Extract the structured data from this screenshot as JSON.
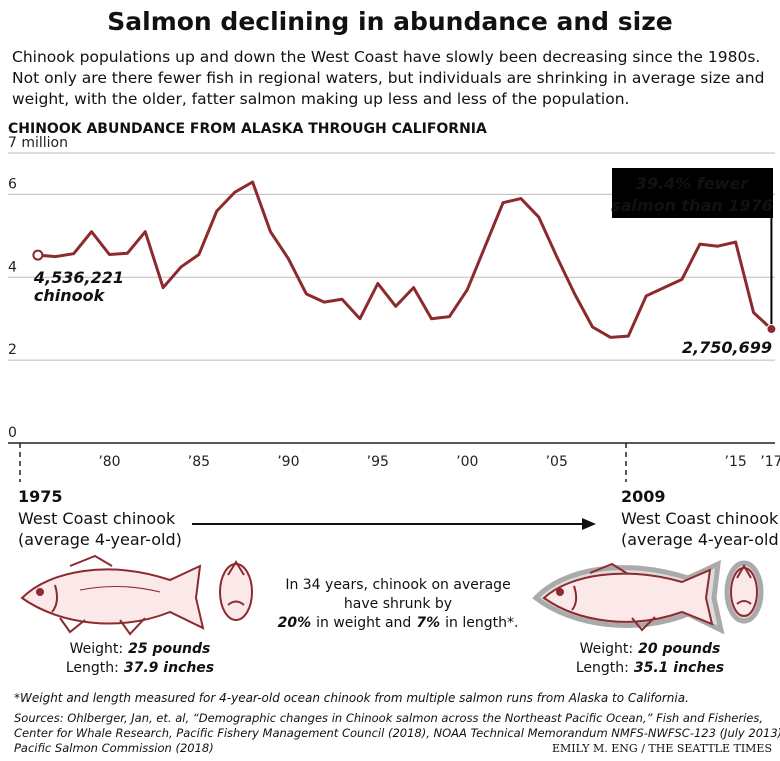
{
  "chart_data": {
    "type": "line",
    "title": "Salmon declining in abundance and size",
    "subtitle": [
      "Chinook populations up and down the West Coast have slowly been decreasing since the 1980s.",
      "Not only are there fewer fish in regional waters, but individuals are shrinking in average size and",
      "weight, with the older, fatter salmon making up less and less of the population."
    ],
    "heading": "CHINOOK ABUNDANCE FROM ALASKA THROUGH CALIFORNIA",
    "x": [
      1976,
      1977,
      1978,
      1979,
      1980,
      1981,
      1982,
      1983,
      1984,
      1985,
      1986,
      1987,
      1988,
      1989,
      1990,
      1991,
      1992,
      1993,
      1994,
      1995,
      1996,
      1997,
      1998,
      1999,
      2000,
      2001,
      2002,
      2003,
      2004,
      2005,
      2006,
      2007,
      2008,
      2009,
      2010,
      2011,
      2012,
      2013,
      2014,
      2015,
      2016,
      2017
    ],
    "values": [
      4.536221,
      4.5,
      4.57,
      5.1,
      4.55,
      4.58,
      5.1,
      3.75,
      4.25,
      4.55,
      5.6,
      6.05,
      6.3,
      5.1,
      4.45,
      3.6,
      3.4,
      3.47,
      3.0,
      3.85,
      3.3,
      3.75,
      3.0,
      3.05,
      3.7,
      4.75,
      5.8,
      5.9,
      5.45,
      4.5,
      3.6,
      2.8,
      2.55,
      2.58,
      3.55,
      3.75,
      3.95,
      4.8,
      4.75,
      4.85,
      3.15,
      2.750699
    ],
    "value_labels": [
      "4,536,221",
      null,
      null,
      null,
      null,
      null,
      null,
      null,
      null,
      null,
      null,
      null,
      null,
      null,
      null,
      null,
      null,
      null,
      null,
      null,
      null,
      null,
      null,
      null,
      null,
      null,
      null,
      null,
      null,
      null,
      null,
      null,
      null,
      null,
      null,
      null,
      null,
      null,
      null,
      null,
      null,
      "2,750,699"
    ],
    "color": "#8c2a2e",
    "xlim": [
      1975,
      2017.2
    ],
    "xticks": [
      {
        "value": 1980,
        "label": "’80"
      },
      {
        "value": 1985,
        "label": "’85"
      },
      {
        "value": 1990,
        "label": "’90"
      },
      {
        "value": 1995,
        "label": "’95"
      },
      {
        "value": 2000,
        "label": "’00"
      },
      {
        "value": 2005,
        "label": "’05"
      },
      {
        "value": 2015,
        "label": "’15"
      },
      {
        "value": 2017,
        "label": "’17"
      }
    ],
    "ylim": [
      0,
      7
    ],
    "yticks": [
      0,
      2,
      4,
      6,
      {
        "value": 7,
        "label": "7 million"
      }
    ],
    "grid": true,
    "annotations": {
      "start_unit": "chinook",
      "callout": [
        "39.4% fewer",
        "salmon than 1976"
      ]
    }
  },
  "comparison": {
    "left": {
      "year": "1975",
      "lines": [
        "West Coast chinook",
        "(average 4-year-old)"
      ],
      "weight_label": "Weight:",
      "weight": "25 pounds",
      "length_label": "Length:",
      "length": "37.9 inches"
    },
    "right": {
      "year": "2009",
      "lines": [
        "West Coast chinook",
        "(average 4-year-old)"
      ],
      "weight_label": "Weight:",
      "weight": "20 pounds",
      "length_label": "Length:",
      "length": "35.1 inches"
    },
    "middle": {
      "line1": "In 34 years, chinook on average",
      "line2": "have shrunk by",
      "pct_weight": "20%",
      "mid": "in weight and",
      "pct_length": "7%",
      "end": "in length*."
    }
  },
  "footnote": "*Weight and length measured for 4-year-old ocean chinook from multiple salmon runs from Alaska to California.",
  "sources": [
    "Sources: Ohlberger, Jan, et. al, “Demographic changes in Chinook salmon across the Northeast Pacific Ocean,” Fish and Fisheries,",
    "Center for Whale Research, Pacific Fishery Management Council (2018), NOAA Technical Memorandum NMFS-NWFSC-123 (July 2013),",
    "Pacific Salmon Commission (2018)"
  ],
  "credit": "EMILY M. ENG / THE SEATTLE TIMES"
}
